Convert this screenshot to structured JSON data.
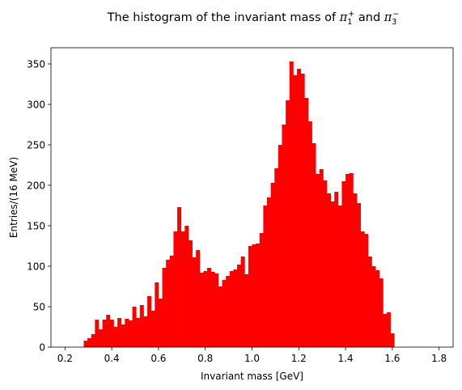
{
  "chart_data": {
    "type": "bar",
    "title": {
      "prefix": "The histogram of the invariant mass of ",
      "particle1": "π",
      "particle1_sub": "1",
      "particle1_sup": "+",
      "joiner": " and ",
      "particle2": "π",
      "particle2_sub": "3",
      "particle2_sup": "−"
    },
    "xlabel": "Invariant mass [GeV]",
    "ylabel": "Entries/(16 MeV)",
    "xlim": [
      0.14,
      1.86
    ],
    "ylim": [
      0,
      370
    ],
    "xticks": [
      0.2,
      0.4,
      0.6,
      0.8,
      1.0,
      1.2,
      1.4,
      1.6,
      1.8
    ],
    "xtick_labels": [
      "0.2",
      "0.4",
      "0.6",
      "0.8",
      "1.0",
      "1.2",
      "1.4",
      "1.6",
      "1.8"
    ],
    "yticks": [
      0,
      50,
      100,
      150,
      200,
      250,
      300,
      350
    ],
    "ytick_labels": [
      "0",
      "50",
      "100",
      "150",
      "200",
      "250",
      "300",
      "350"
    ],
    "bin_start": 0.28,
    "bin_width": 0.016,
    "values": [
      8,
      11,
      16,
      34,
      22,
      34,
      40,
      34,
      25,
      36,
      28,
      35,
      33,
      50,
      36,
      52,
      38,
      63,
      45,
      80,
      60,
      98,
      108,
      113,
      143,
      173,
      143,
      150,
      132,
      111,
      120,
      92,
      94,
      98,
      93,
      91,
      75,
      83,
      88,
      94,
      96,
      102,
      112,
      90,
      125,
      127,
      128,
      141,
      175,
      185,
      203,
      221,
      250,
      275,
      305,
      353,
      336,
      344,
      338,
      308,
      279,
      252,
      214,
      220,
      206,
      190,
      180,
      192,
      175,
      205,
      214,
      215,
      190,
      178,
      143,
      140,
      112,
      100,
      95,
      85,
      41,
      43,
      17
    ],
    "color": "#ff0000"
  }
}
